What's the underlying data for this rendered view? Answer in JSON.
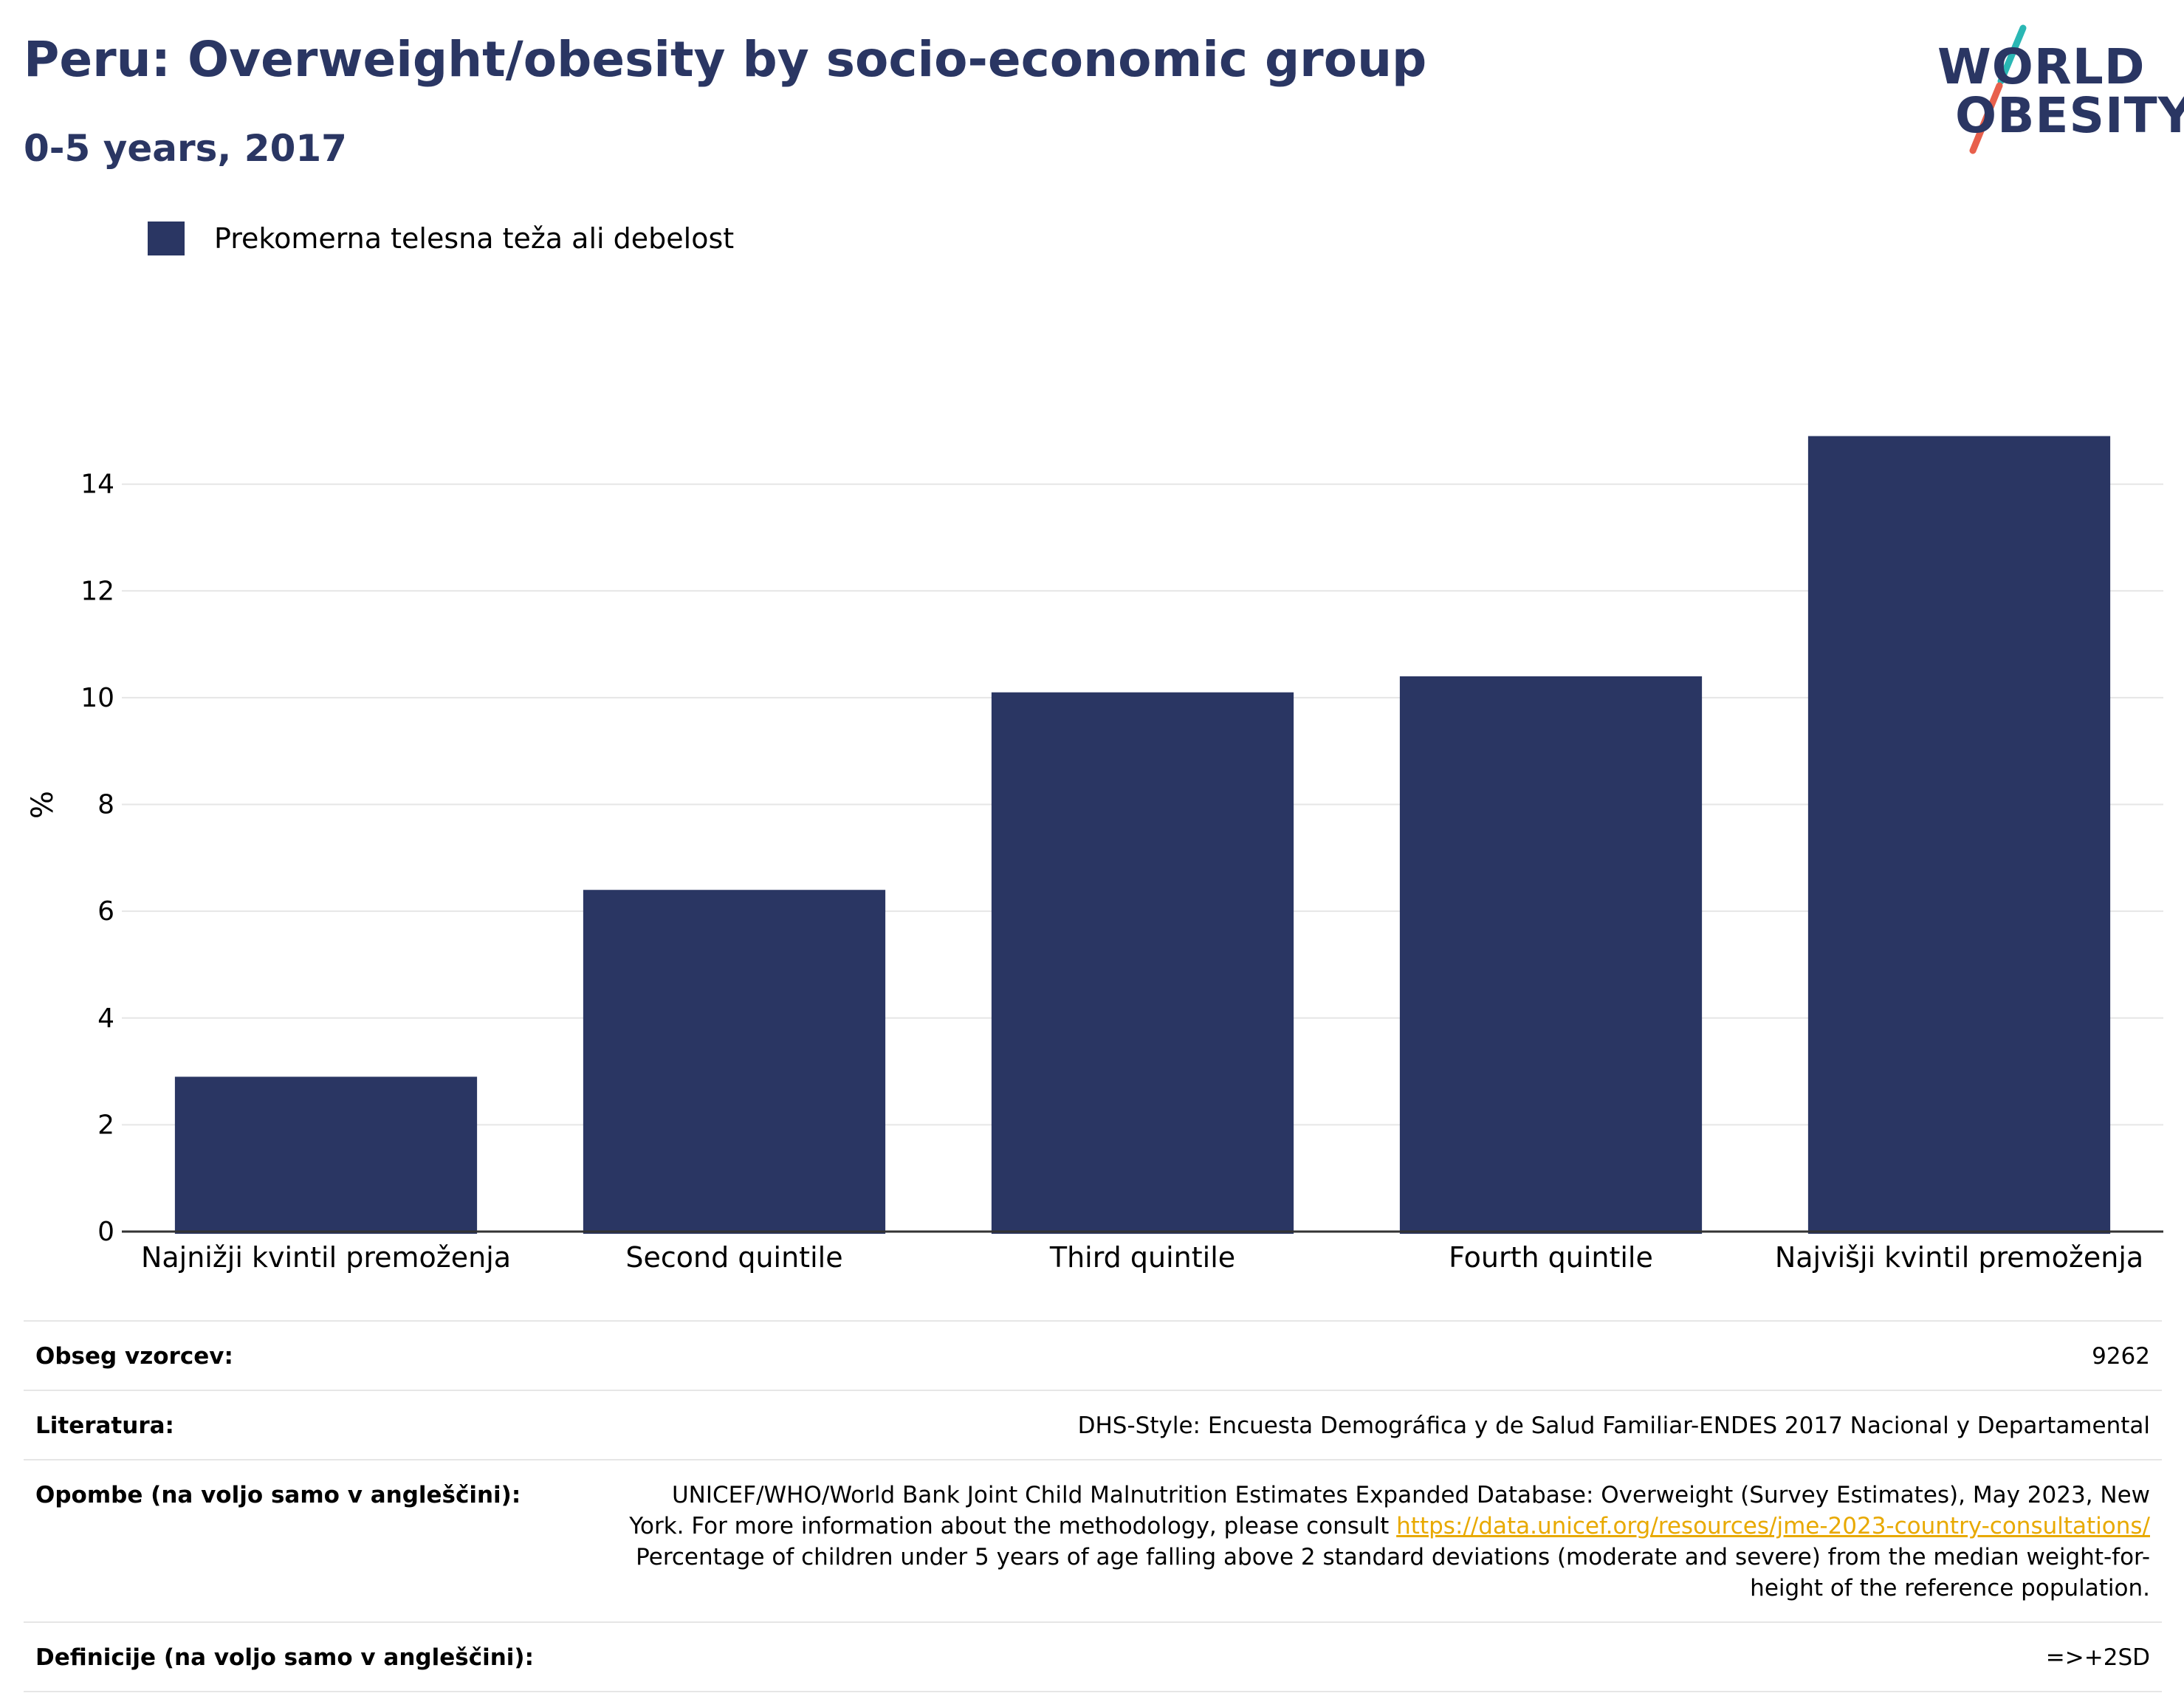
{
  "header": {
    "title": "Peru: Overweight/obesity by socio-economic group",
    "subtitle": "0-5 years, 2017"
  },
  "logo": {
    "line1": "WORLD",
    "line2": "OBESITY",
    "icon": "world-obesity-logo",
    "colors": {
      "text": "#2a3663",
      "slash_top": "#2ab7b4",
      "slash_bottom": "#e8604c"
    }
  },
  "colors": {
    "bar": "#2a3663",
    "grid": "#e6e6e6",
    "axis": "#333333",
    "link": "#e8a900"
  },
  "chart_data": {
    "type": "bar",
    "ylabel": "%",
    "xlabel": "",
    "ylim": [
      0,
      15.6
    ],
    "yticks": [
      0,
      2,
      4,
      6,
      8,
      10,
      12,
      14
    ],
    "grid": true,
    "legend_position": "top-left",
    "categories": [
      "Najnižji kvintil premoženja",
      "Second quintile",
      "Third quintile",
      "Fourth quintile",
      "Najvišji kvintil premoženja"
    ],
    "series": [
      {
        "name": "Prekomerna telesna teža ali debelost",
        "values": [
          2.9,
          6.4,
          10.1,
          10.4,
          14.9
        ]
      }
    ]
  },
  "meta": {
    "rows": [
      {
        "key": "Obseg vzorcev:",
        "value": "9262"
      },
      {
        "key": "Literatura:",
        "value": "DHS-Style: Encuesta Demográfica y de Salud Familiar-ENDES 2017 Nacional y Departamental"
      },
      {
        "key": "Opombe (na voljo samo v angleščini):",
        "value_pre": "UNICEF/WHO/World Bank Joint Child Malnutrition Estimates Expanded Database: Overweight (Survey Estimates), May 2023, New York. For more information about the methodology, please consult ",
        "link": "https://data.unicef.org/resources/jme-2023-country-consultations/",
        "value_post": " Percentage of children under 5 years of age falling above 2 standard deviations (moderate and severe) from the median weight-for-height of the reference population."
      },
      {
        "key": "Definicije (na voljo samo v angleščini):",
        "value": "=>+2SD"
      }
    ]
  }
}
